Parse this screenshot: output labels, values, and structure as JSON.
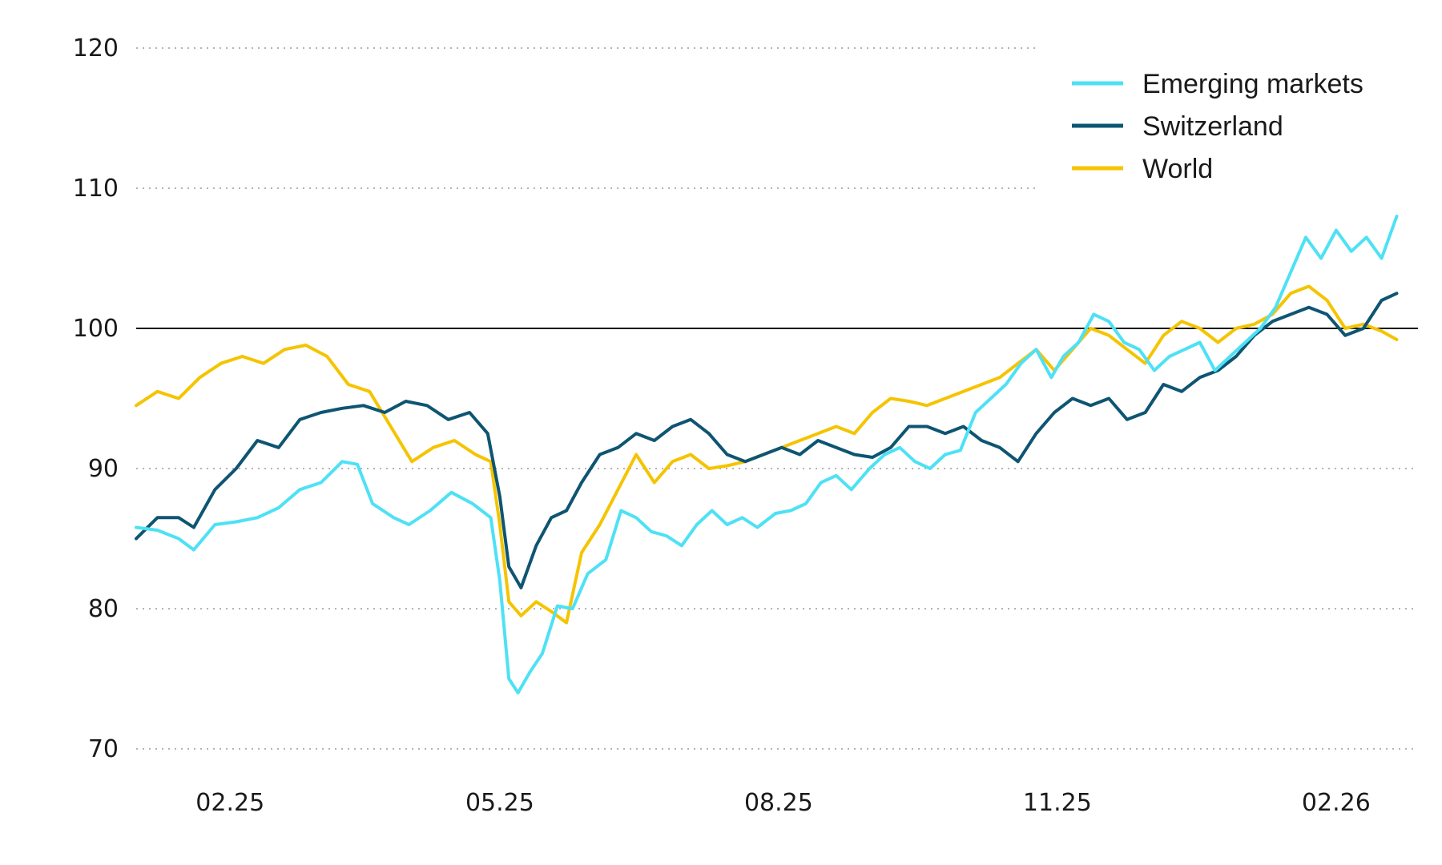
{
  "chart_data": {
    "type": "line",
    "title": "",
    "xlabel": "",
    "ylabel": "",
    "ylim": [
      70,
      120
    ],
    "yticks": [
      70,
      80,
      90,
      100,
      110,
      120
    ],
    "xlim": [
      "2025-01-01",
      "2026-02-28"
    ],
    "xticks": [
      {
        "label": "02.25",
        "date": "2025-02-01"
      },
      {
        "label": "05.25",
        "date": "2025-05-01"
      },
      {
        "label": "08.25",
        "date": "2025-08-01"
      },
      {
        "label": "11.25",
        "date": "2025-11-01"
      },
      {
        "label": "02.26",
        "date": "2026-02-01"
      }
    ],
    "reference_line": 100,
    "grid": "horizontal dotted",
    "legend_position": "top-right",
    "series": [
      {
        "name": "Emerging markets",
        "color": "#4ee1f5",
        "points": [
          [
            "2025-01-01",
            85.8
          ],
          [
            "2025-01-08",
            85.6
          ],
          [
            "2025-01-15",
            85.0
          ],
          [
            "2025-01-20",
            84.2
          ],
          [
            "2025-01-27",
            86.0
          ],
          [
            "2025-02-03",
            86.2
          ],
          [
            "2025-02-10",
            86.5
          ],
          [
            "2025-02-17",
            87.2
          ],
          [
            "2025-02-24",
            88.5
          ],
          [
            "2025-03-03",
            89.0
          ],
          [
            "2025-03-10",
            90.5
          ],
          [
            "2025-03-15",
            90.3
          ],
          [
            "2025-03-20",
            87.5
          ],
          [
            "2025-03-27",
            86.5
          ],
          [
            "2025-04-01",
            86.0
          ],
          [
            "2025-04-08",
            87.0
          ],
          [
            "2025-04-15",
            88.3
          ],
          [
            "2025-04-22",
            87.5
          ],
          [
            "2025-04-28",
            86.5
          ],
          [
            "2025-05-01",
            82.0
          ],
          [
            "2025-05-04",
            75.0
          ],
          [
            "2025-05-07",
            74.0
          ],
          [
            "2025-05-11",
            75.5
          ],
          [
            "2025-05-15",
            76.8
          ],
          [
            "2025-05-20",
            80.2
          ],
          [
            "2025-05-25",
            80.0
          ],
          [
            "2025-05-30",
            82.5
          ],
          [
            "2025-06-05",
            83.5
          ],
          [
            "2025-06-10",
            87.0
          ],
          [
            "2025-06-15",
            86.5
          ],
          [
            "2025-06-20",
            85.5
          ],
          [
            "2025-06-25",
            85.2
          ],
          [
            "2025-06-30",
            84.5
          ],
          [
            "2025-07-05",
            86.0
          ],
          [
            "2025-07-10",
            87.0
          ],
          [
            "2025-07-15",
            86.0
          ],
          [
            "2025-07-20",
            86.5
          ],
          [
            "2025-07-25",
            85.8
          ],
          [
            "2025-07-31",
            86.8
          ],
          [
            "2025-08-05",
            87.0
          ],
          [
            "2025-08-10",
            87.5
          ],
          [
            "2025-08-15",
            89.0
          ],
          [
            "2025-08-20",
            89.5
          ],
          [
            "2025-08-25",
            88.5
          ],
          [
            "2025-08-31",
            90.0
          ],
          [
            "2025-09-05",
            91.0
          ],
          [
            "2025-09-10",
            91.5
          ],
          [
            "2025-09-15",
            90.5
          ],
          [
            "2025-09-20",
            90.0
          ],
          [
            "2025-09-25",
            91.0
          ],
          [
            "2025-09-30",
            91.3
          ],
          [
            "2025-10-05",
            94.0
          ],
          [
            "2025-10-10",
            95.0
          ],
          [
            "2025-10-15",
            96.0
          ],
          [
            "2025-10-20",
            97.5
          ],
          [
            "2025-10-25",
            98.5
          ],
          [
            "2025-10-30",
            96.5
          ],
          [
            "2025-11-03",
            98.0
          ],
          [
            "2025-11-08",
            99.0
          ],
          [
            "2025-11-13",
            101.0
          ],
          [
            "2025-11-18",
            100.5
          ],
          [
            "2025-11-23",
            99.0
          ],
          [
            "2025-11-28",
            98.5
          ],
          [
            "2025-12-03",
            97.0
          ],
          [
            "2025-12-08",
            98.0
          ],
          [
            "2025-12-13",
            98.5
          ],
          [
            "2025-12-18",
            99.0
          ],
          [
            "2025-12-23",
            97.0
          ],
          [
            "2025-12-28",
            98.0
          ],
          [
            "2026-01-02",
            99.0
          ],
          [
            "2026-01-07",
            100.0
          ],
          [
            "2026-01-12",
            101.5
          ],
          [
            "2026-01-17",
            104.0
          ],
          [
            "2026-01-22",
            106.5
          ],
          [
            "2026-01-27",
            105.0
          ],
          [
            "2026-02-01",
            107.0
          ],
          [
            "2026-02-06",
            105.5
          ],
          [
            "2026-02-11",
            106.5
          ],
          [
            "2026-02-16",
            105.0
          ],
          [
            "2026-02-21",
            108.0
          ]
        ]
      },
      {
        "name": "Switzerland",
        "color": "#0e5572",
        "points": [
          [
            "2025-01-01",
            85.0
          ],
          [
            "2025-01-08",
            86.5
          ],
          [
            "2025-01-15",
            86.5
          ],
          [
            "2025-01-20",
            85.8
          ],
          [
            "2025-01-27",
            88.5
          ],
          [
            "2025-02-03",
            90.0
          ],
          [
            "2025-02-10",
            92.0
          ],
          [
            "2025-02-17",
            91.5
          ],
          [
            "2025-02-24",
            93.5
          ],
          [
            "2025-03-03",
            94.0
          ],
          [
            "2025-03-10",
            94.3
          ],
          [
            "2025-03-17",
            94.5
          ],
          [
            "2025-03-24",
            94.0
          ],
          [
            "2025-03-31",
            94.8
          ],
          [
            "2025-04-07",
            94.5
          ],
          [
            "2025-04-14",
            93.5
          ],
          [
            "2025-04-21",
            94.0
          ],
          [
            "2025-04-27",
            92.5
          ],
          [
            "2025-05-01",
            88.0
          ],
          [
            "2025-05-04",
            83.0
          ],
          [
            "2025-05-08",
            81.5
          ],
          [
            "2025-05-13",
            84.5
          ],
          [
            "2025-05-18",
            86.5
          ],
          [
            "2025-05-23",
            87.0
          ],
          [
            "2025-05-28",
            89.0
          ],
          [
            "2025-06-03",
            91.0
          ],
          [
            "2025-06-09",
            91.5
          ],
          [
            "2025-06-15",
            92.5
          ],
          [
            "2025-06-21",
            92.0
          ],
          [
            "2025-06-27",
            93.0
          ],
          [
            "2025-07-03",
            93.5
          ],
          [
            "2025-07-09",
            92.5
          ],
          [
            "2025-07-15",
            91.0
          ],
          [
            "2025-07-21",
            90.5
          ],
          [
            "2025-07-27",
            91.0
          ],
          [
            "2025-08-02",
            91.5
          ],
          [
            "2025-08-08",
            91.0
          ],
          [
            "2025-08-14",
            92.0
          ],
          [
            "2025-08-20",
            91.5
          ],
          [
            "2025-08-26",
            91.0
          ],
          [
            "2025-09-01",
            90.8
          ],
          [
            "2025-09-07",
            91.5
          ],
          [
            "2025-09-13",
            93.0
          ],
          [
            "2025-09-19",
            93.0
          ],
          [
            "2025-09-25",
            92.5
          ],
          [
            "2025-10-01",
            93.0
          ],
          [
            "2025-10-07",
            92.0
          ],
          [
            "2025-10-13",
            91.5
          ],
          [
            "2025-10-19",
            90.5
          ],
          [
            "2025-10-25",
            92.5
          ],
          [
            "2025-10-31",
            94.0
          ],
          [
            "2025-11-06",
            95.0
          ],
          [
            "2025-11-12",
            94.5
          ],
          [
            "2025-11-18",
            95.0
          ],
          [
            "2025-11-24",
            93.5
          ],
          [
            "2025-11-30",
            94.0
          ],
          [
            "2025-12-06",
            96.0
          ],
          [
            "2025-12-12",
            95.5
          ],
          [
            "2025-12-18",
            96.5
          ],
          [
            "2025-12-24",
            97.0
          ],
          [
            "2025-12-30",
            98.0
          ],
          [
            "2026-01-05",
            99.5
          ],
          [
            "2026-01-11",
            100.5
          ],
          [
            "2026-01-17",
            101.0
          ],
          [
            "2026-01-23",
            101.5
          ],
          [
            "2026-01-29",
            101.0
          ],
          [
            "2026-02-04",
            99.5
          ],
          [
            "2026-02-10",
            100.0
          ],
          [
            "2026-02-16",
            102.0
          ],
          [
            "2026-02-21",
            102.5
          ]
        ]
      },
      {
        "name": "World",
        "color": "#f5c400",
        "points": [
          [
            "2025-01-01",
            94.5
          ],
          [
            "2025-01-08",
            95.5
          ],
          [
            "2025-01-15",
            95.0
          ],
          [
            "2025-01-22",
            96.5
          ],
          [
            "2025-01-29",
            97.5
          ],
          [
            "2025-02-05",
            98.0
          ],
          [
            "2025-02-12",
            97.5
          ],
          [
            "2025-02-19",
            98.5
          ],
          [
            "2025-02-26",
            98.8
          ],
          [
            "2025-03-05",
            98.0
          ],
          [
            "2025-03-12",
            96.0
          ],
          [
            "2025-03-19",
            95.5
          ],
          [
            "2025-03-26",
            93.0
          ],
          [
            "2025-04-02",
            90.5
          ],
          [
            "2025-04-09",
            91.5
          ],
          [
            "2025-04-16",
            92.0
          ],
          [
            "2025-04-23",
            91.0
          ],
          [
            "2025-04-28",
            90.5
          ],
          [
            "2025-05-01",
            86.0
          ],
          [
            "2025-05-04",
            80.5
          ],
          [
            "2025-05-08",
            79.5
          ],
          [
            "2025-05-13",
            80.5
          ],
          [
            "2025-05-18",
            79.8
          ],
          [
            "2025-05-23",
            79.0
          ],
          [
            "2025-05-28",
            84.0
          ],
          [
            "2025-06-03",
            86.0
          ],
          [
            "2025-06-09",
            88.5
          ],
          [
            "2025-06-15",
            91.0
          ],
          [
            "2025-06-21",
            89.0
          ],
          [
            "2025-06-27",
            90.5
          ],
          [
            "2025-07-03",
            91.0
          ],
          [
            "2025-07-09",
            90.0
          ],
          [
            "2025-07-15",
            90.2
          ],
          [
            "2025-07-21",
            90.5
          ],
          [
            "2025-07-27",
            91.0
          ],
          [
            "2025-08-02",
            91.5
          ],
          [
            "2025-08-08",
            92.0
          ],
          [
            "2025-08-14",
            92.5
          ],
          [
            "2025-08-20",
            93.0
          ],
          [
            "2025-08-26",
            92.5
          ],
          [
            "2025-09-01",
            94.0
          ],
          [
            "2025-09-07",
            95.0
          ],
          [
            "2025-09-13",
            94.8
          ],
          [
            "2025-09-19",
            94.5
          ],
          [
            "2025-09-25",
            95.0
          ],
          [
            "2025-10-01",
            95.5
          ],
          [
            "2025-10-07",
            96.0
          ],
          [
            "2025-10-13",
            96.5
          ],
          [
            "2025-10-19",
            97.5
          ],
          [
            "2025-10-25",
            98.5
          ],
          [
            "2025-10-31",
            97.0
          ],
          [
            "2025-11-06",
            98.5
          ],
          [
            "2025-11-12",
            100.0
          ],
          [
            "2025-11-18",
            99.5
          ],
          [
            "2025-11-24",
            98.5
          ],
          [
            "2025-11-30",
            97.5
          ],
          [
            "2025-12-06",
            99.5
          ],
          [
            "2025-12-12",
            100.5
          ],
          [
            "2025-12-18",
            100.0
          ],
          [
            "2025-12-24",
            99.0
          ],
          [
            "2025-12-30",
            100.0
          ],
          [
            "2026-01-05",
            100.3
          ],
          [
            "2026-01-11",
            101.0
          ],
          [
            "2026-01-17",
            102.5
          ],
          [
            "2026-01-23",
            103.0
          ],
          [
            "2026-01-29",
            102.0
          ],
          [
            "2026-02-04",
            100.0
          ],
          [
            "2026-02-10",
            100.3
          ],
          [
            "2026-02-16",
            99.8
          ],
          [
            "2026-02-21",
            99.2
          ]
        ]
      }
    ]
  }
}
